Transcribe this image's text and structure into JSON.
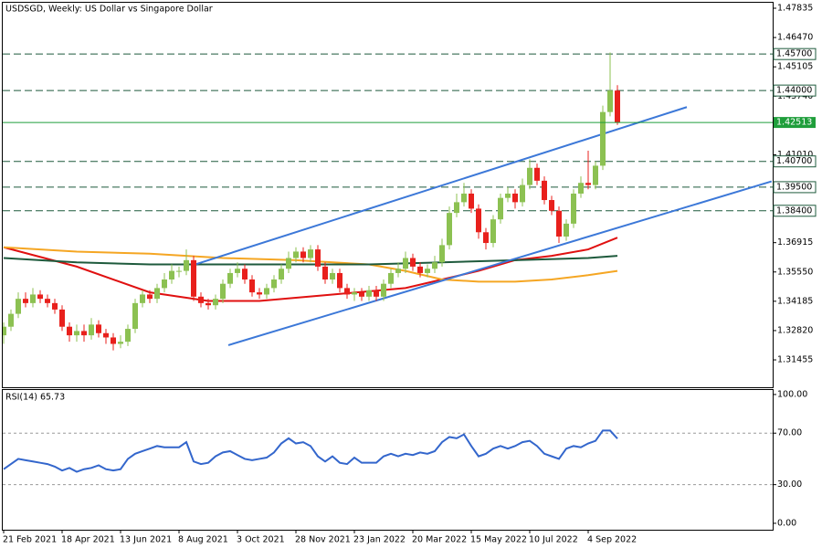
{
  "chart_data": [
    {
      "type": "candlestick",
      "title": "USDSGD, Weekly:  US Dollar vs Singapore Dollar",
      "categories": [
        "21 Feb 2021",
        null,
        null,
        null,
        null,
        null,
        null,
        null,
        "18 Apr 2021",
        null,
        null,
        null,
        null,
        null,
        null,
        null,
        "13 Jun 2021",
        null,
        null,
        null,
        null,
        null,
        null,
        null,
        "8 Aug 2021",
        null,
        null,
        null,
        null,
        null,
        null,
        null,
        "3 Oct 2021",
        null,
        null,
        null,
        null,
        null,
        null,
        null,
        "28 Nov 2021",
        null,
        null,
        null,
        null,
        null,
        null,
        null,
        "23 Jan 2022",
        null,
        null,
        null,
        null,
        null,
        null,
        null,
        "20 Mar 2022",
        null,
        null,
        null,
        null,
        null,
        null,
        null,
        "15 May 2022",
        null,
        null,
        null,
        null,
        null,
        null,
        null,
        "10 Jul 2022",
        null,
        null,
        null,
        null,
        null,
        null,
        null,
        "4 Sep 2022",
        null,
        null,
        null,
        null
      ],
      "open": [
        1.326,
        1.33,
        1.336,
        1.343,
        1.341,
        1.345,
        1.343,
        1.341,
        1.338,
        1.33,
        1.326,
        1.328,
        1.326,
        1.331,
        1.327,
        1.325,
        1.322,
        1.323,
        1.329,
        1.341,
        1.345,
        1.343,
        1.348,
        1.352,
        1.356,
        1.356,
        1.361,
        1.344,
        1.341,
        1.34,
        1.343,
        1.35,
        1.355,
        1.357,
        1.352,
        1.346,
        1.345,
        1.348,
        1.352,
        1.357,
        1.362,
        1.365,
        1.362,
        1.366,
        1.358,
        1.352,
        1.355,
        1.348,
        1.345,
        1.346,
        1.344,
        1.347,
        1.344,
        1.35,
        1.355,
        1.357,
        1.362,
        1.358,
        1.355,
        1.357,
        1.36,
        1.368,
        1.383,
        1.388,
        1.392,
        1.385,
        1.374,
        1.369,
        1.38,
        1.39,
        1.392,
        1.388,
        1.396,
        1.404,
        1.398,
        1.389,
        1.384,
        1.372,
        1.378,
        1.392,
        1.397,
        1.396,
        1.405,
        1.43,
        1.44
      ],
      "high": [
        1.332,
        1.338,
        1.346,
        1.346,
        1.348,
        1.347,
        1.345,
        1.343,
        1.34,
        1.332,
        1.331,
        1.331,
        1.334,
        1.333,
        1.329,
        1.327,
        1.326,
        1.331,
        1.343,
        1.347,
        1.347,
        1.35,
        1.355,
        1.359,
        1.358,
        1.366,
        1.363,
        1.346,
        1.343,
        1.345,
        1.352,
        1.357,
        1.36,
        1.359,
        1.354,
        1.348,
        1.35,
        1.354,
        1.359,
        1.365,
        1.367,
        1.367,
        1.368,
        1.368,
        1.36,
        1.357,
        1.357,
        1.35,
        1.348,
        1.348,
        1.349,
        1.349,
        1.352,
        1.357,
        1.36,
        1.365,
        1.364,
        1.36,
        1.359,
        1.363,
        1.371,
        1.386,
        1.392,
        1.397,
        1.394,
        1.387,
        1.376,
        1.382,
        1.392,
        1.395,
        1.394,
        1.399,
        1.408,
        1.406,
        1.4,
        1.391,
        1.386,
        1.38,
        1.394,
        1.4,
        1.412,
        1.407,
        1.433,
        1.4577,
        1.4425
      ],
      "low": [
        1.322,
        1.328,
        1.334,
        1.339,
        1.339,
        1.341,
        1.339,
        1.336,
        1.328,
        1.323,
        1.323,
        1.323,
        1.324,
        1.325,
        1.322,
        1.319,
        1.32,
        1.321,
        1.327,
        1.339,
        1.341,
        1.341,
        1.346,
        1.35,
        1.353,
        1.354,
        1.342,
        1.339,
        1.338,
        1.338,
        1.341,
        1.348,
        1.353,
        1.35,
        1.344,
        1.343,
        1.343,
        1.346,
        1.35,
        1.355,
        1.36,
        1.36,
        1.36,
        1.356,
        1.35,
        1.35,
        1.346,
        1.343,
        1.342,
        1.342,
        1.342,
        1.342,
        1.342,
        1.348,
        1.353,
        1.355,
        1.356,
        1.353,
        1.353,
        1.355,
        1.358,
        1.366,
        1.381,
        1.386,
        1.383,
        1.371,
        1.366,
        1.367,
        1.378,
        1.388,
        1.385,
        1.386,
        1.394,
        1.396,
        1.387,
        1.382,
        1.369,
        1.37,
        1.376,
        1.39,
        1.394,
        1.394,
        1.403,
        1.428,
        1.424
      ],
      "close": [
        1.33,
        1.336,
        1.343,
        1.341,
        1.345,
        1.343,
        1.341,
        1.338,
        1.33,
        1.326,
        1.328,
        1.326,
        1.331,
        1.327,
        1.325,
        1.322,
        1.323,
        1.329,
        1.341,
        1.345,
        1.343,
        1.348,
        1.352,
        1.356,
        1.356,
        1.361,
        1.344,
        1.341,
        1.34,
        1.343,
        1.35,
        1.355,
        1.357,
        1.352,
        1.346,
        1.345,
        1.348,
        1.352,
        1.357,
        1.362,
        1.365,
        1.362,
        1.366,
        1.358,
        1.352,
        1.355,
        1.348,
        1.345,
        1.346,
        1.344,
        1.347,
        1.344,
        1.35,
        1.355,
        1.357,
        1.362,
        1.358,
        1.355,
        1.357,
        1.36,
        1.368,
        1.383,
        1.388,
        1.392,
        1.385,
        1.374,
        1.369,
        1.38,
        1.39,
        1.392,
        1.388,
        1.396,
        1.404,
        1.398,
        1.389,
        1.384,
        1.372,
        1.378,
        1.392,
        1.397,
        1.396,
        1.405,
        1.43,
        1.44,
        1.4251
      ],
      "up_color": "#8cc152",
      "down_color": "#e8201c",
      "ylim": [
        1.3018,
        1.4809
      ],
      "yticks": [
        1.47835,
        {
          "value": 1.4647,
          "label": "1.46470"
        },
        1.45105,
        {
          "value": 1.4374,
          "label": "1.43740"
        },
        {
          "value": 1.4101,
          "label": "1.41010"
        },
        1.36915,
        {
          "value": 1.3555,
          "label": "1.35550"
        },
        1.34185,
        {
          "value": 1.3282,
          "label": "1.32820"
        },
        1.31455
      ],
      "levels": [
        {
          "value": 1.457,
          "label": "1.45700"
        },
        {
          "value": 1.44,
          "label": "1.44000"
        },
        {
          "value": 1.407,
          "label": "1.40700"
        },
        {
          "value": 1.395,
          "label": "1.39500"
        },
        {
          "value": 1.384,
          "label": "1.38400"
        }
      ],
      "level_color": "#1e5a3c",
      "current_price": 1.42513,
      "current_color": "#1f9e3b",
      "overlays": [
        {
          "color": "#e01010",
          "x": [
            0,
            10,
            20,
            28,
            35,
            45,
            55,
            60,
            65,
            70,
            75,
            80,
            84
          ],
          "values": [
            1.367,
            1.358,
            1.346,
            1.342,
            1.342,
            1.345,
            1.348,
            1.352,
            1.356,
            1.361,
            1.363,
            1.366,
            1.3715
          ]
        },
        {
          "color": "#f5a623",
          "x": [
            0,
            10,
            20,
            30,
            40,
            50,
            55,
            60,
            65,
            70,
            75,
            80,
            84
          ],
          "values": [
            1.367,
            1.365,
            1.364,
            1.362,
            1.361,
            1.359,
            1.356,
            1.352,
            1.351,
            1.351,
            1.352,
            1.354,
            1.356
          ]
        },
        {
          "color": "#1e5a3c",
          "x": [
            0,
            10,
            20,
            30,
            40,
            50,
            60,
            70,
            80,
            84
          ],
          "values": [
            1.362,
            1.36,
            1.359,
            1.359,
            1.359,
            1.359,
            1.36,
            1.361,
            1.362,
            1.363
          ]
        }
      ],
      "trendlines": [
        {
          "color": "#3c78d8",
          "x": [
            26.1,
            93.5
          ],
          "values": [
            1.3589,
            1.4323
          ]
        },
        {
          "color": "#3c78d8",
          "x": [
            30.75,
            105.1
          ],
          "values": [
            1.3214,
            1.3977
          ]
        }
      ]
    },
    {
      "type": "line",
      "title": "RSI(14) 65.73",
      "values": [
        42,
        46,
        50,
        49,
        48,
        47,
        46,
        44,
        41,
        43,
        40,
        42,
        43,
        45,
        42,
        41,
        42,
        50,
        54,
        56,
        58,
        60,
        59,
        59,
        59,
        63,
        48,
        46,
        47,
        52,
        55,
        56,
        53,
        50,
        49,
        50,
        51,
        55,
        62,
        66,
        62,
        63,
        60,
        52,
        48,
        52,
        47,
        46,
        51,
        47,
        47,
        47,
        52,
        54,
        52,
        54,
        53,
        55,
        54,
        56,
        63,
        67,
        66,
        69,
        60,
        52,
        54,
        58,
        60,
        58,
        60,
        63,
        64,
        60,
        54,
        52,
        50,
        58,
        60,
        59,
        62,
        64,
        72,
        72,
        65.73
      ],
      "color": "#3366cc",
      "ylim": [
        -5,
        103.5
      ],
      "yticks": [
        {
          "value": 100,
          "label": "100.00"
        },
        {
          "value": 70,
          "label": "70.00"
        },
        {
          "value": 30,
          "label": "30.00"
        },
        {
          "value": 0,
          "label": "0.00"
        }
      ],
      "levels": [
        70,
        30
      ]
    }
  ]
}
